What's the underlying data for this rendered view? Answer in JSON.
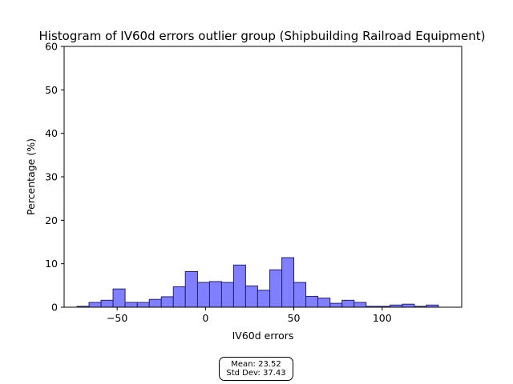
{
  "chart_data": {
    "type": "bar",
    "title": "Histogram of IV60d errors outlier group (Shipbuilding Railroad Equipment)",
    "xlabel": "IV60d errors",
    "ylabel": "Percentage (%)",
    "xlim": [
      -80,
      145
    ],
    "ylim": [
      0,
      60
    ],
    "xticks": [
      -50,
      0,
      50,
      100
    ],
    "yticks": [
      0,
      10,
      20,
      30,
      40,
      50,
      60
    ],
    "xtick_labels": [
      "−50",
      "0",
      "50",
      "100"
    ],
    "ytick_labels": [
      "0",
      "10",
      "20",
      "30",
      "40",
      "50",
      "60"
    ],
    "bar_color": "#7f7fff",
    "edge_color": "#222266",
    "bins": [
      {
        "x0": -72.7,
        "x1": -65.9,
        "value": 0.2
      },
      {
        "x0": -65.9,
        "x1": -59.1,
        "value": 1.1
      },
      {
        "x0": -59.1,
        "x1": -52.3,
        "value": 1.6
      },
      {
        "x0": -52.3,
        "x1": -45.5,
        "value": 4.2
      },
      {
        "x0": -45.5,
        "x1": -38.6,
        "value": 1.1
      },
      {
        "x0": -38.6,
        "x1": -31.8,
        "value": 1.1
      },
      {
        "x0": -31.8,
        "x1": -25.0,
        "value": 1.8
      },
      {
        "x0": -25.0,
        "x1": -18.2,
        "value": 2.4
      },
      {
        "x0": -18.2,
        "x1": -11.4,
        "value": 4.7
      },
      {
        "x0": -11.4,
        "x1": -4.5,
        "value": 8.2
      },
      {
        "x0": -4.5,
        "x1": 2.3,
        "value": 5.7
      },
      {
        "x0": 2.3,
        "x1": 9.1,
        "value": 5.9
      },
      {
        "x0": 9.1,
        "x1": 15.9,
        "value": 5.7
      },
      {
        "x0": 15.9,
        "x1": 22.7,
        "value": 9.7
      },
      {
        "x0": 22.7,
        "x1": 29.5,
        "value": 4.9
      },
      {
        "x0": 29.5,
        "x1": 36.4,
        "value": 3.9
      },
      {
        "x0": 36.4,
        "x1": 43.2,
        "value": 8.6
      },
      {
        "x0": 43.2,
        "x1": 50.0,
        "value": 11.4
      },
      {
        "x0": 50.0,
        "x1": 56.8,
        "value": 5.7
      },
      {
        "x0": 56.8,
        "x1": 63.6,
        "value": 2.5
      },
      {
        "x0": 63.6,
        "x1": 70.5,
        "value": 2.1
      },
      {
        "x0": 70.5,
        "x1": 77.3,
        "value": 0.9
      },
      {
        "x0": 77.3,
        "x1": 84.1,
        "value": 1.6
      },
      {
        "x0": 84.1,
        "x1": 90.9,
        "value": 1.1
      },
      {
        "x0": 90.9,
        "x1": 97.7,
        "value": 0.2
      },
      {
        "x0": 97.7,
        "x1": 104.5,
        "value": 0.2
      },
      {
        "x0": 104.5,
        "x1": 111.4,
        "value": 0.5
      },
      {
        "x0": 111.4,
        "x1": 118.2,
        "value": 0.7
      },
      {
        "x0": 118.2,
        "x1": 125.0,
        "value": 0.2
      },
      {
        "x0": 125.0,
        "x1": 131.8,
        "value": 0.5
      }
    ]
  },
  "stats": {
    "mean_label": "Mean: 23.52",
    "std_label": "Std Dev: 37.43"
  }
}
